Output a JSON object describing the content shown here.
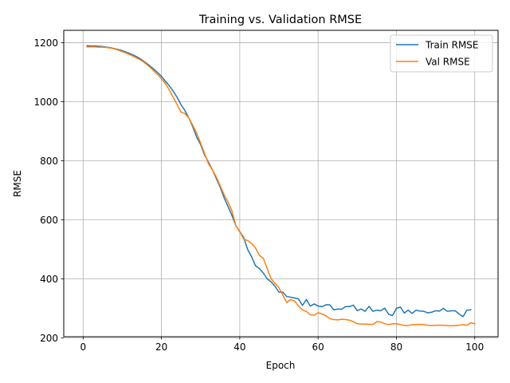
{
  "chart_data": {
    "type": "line",
    "title": "Training vs. Validation RMSE",
    "xlabel": "Epoch",
    "ylabel": "RMSE",
    "xlim": [
      -4.95,
      105.95
    ],
    "ylim": [
      204,
      1242
    ],
    "xticks": [
      0,
      20,
      40,
      60,
      80,
      100
    ],
    "yticks": [
      200,
      400,
      600,
      800,
      1000,
      1200
    ],
    "grid": true,
    "legend": "top-right",
    "series": [
      {
        "name": "Train RMSE",
        "color": "#1f77b4",
        "x": [
          1,
          2,
          3,
          4,
          5,
          6,
          7,
          8,
          9,
          10,
          11,
          12,
          13,
          14,
          15,
          16,
          17,
          18,
          19,
          20,
          21,
          22,
          23,
          24,
          25,
          26,
          27,
          28,
          29,
          30,
          31,
          32,
          33,
          34,
          35,
          36,
          37,
          38,
          39,
          40,
          41,
          42,
          43,
          44,
          45,
          46,
          47,
          48,
          49,
          50,
          51,
          52,
          53,
          54,
          55,
          56,
          57,
          58,
          59,
          60,
          61,
          62,
          63,
          64,
          65,
          66,
          67,
          68,
          69,
          70,
          71,
          72,
          73,
          74,
          75,
          76,
          77,
          78,
          79,
          80,
          81,
          82,
          83,
          84,
          85,
          86,
          87,
          88,
          89,
          90,
          91,
          92,
          93,
          94,
          95,
          96,
          97,
          98,
          99,
          100
        ],
        "values": [
          1190,
          1189,
          1189,
          1188,
          1187,
          1185,
          1183,
          1180,
          1177,
          1173,
          1168,
          1163,
          1157,
          1150,
          1142,
          1132,
          1122,
          1111,
          1099,
          1086,
          1070,
          1054,
          1036,
          1015,
          990,
          970,
          945,
          915,
          880,
          855,
          820,
          795,
          770,
          740,
          710,
          675,
          645,
          615,
          580,
          560,
          540,
          500,
          475,
          445,
          435,
          420,
          400,
          390,
          375,
          355,
          355,
          340,
          338,
          335,
          332,
          310,
          330,
          308,
          315,
          308,
          306,
          312,
          312,
          295,
          298,
          297,
          306,
          306,
          311,
          292,
          298,
          290,
          307,
          290,
          294,
          292,
          301,
          280,
          276,
          300,
          305,
          284,
          294,
          283,
          294,
          291,
          290,
          285,
          287,
          292,
          291,
          300,
          290,
          292,
          292,
          281,
          272,
          294,
          295,
          null
        ],
        "note": ""
      },
      {
        "name": "Val RMSE",
        "color": "#ff7f0e",
        "x": [
          1,
          2,
          3,
          4,
          5,
          6,
          7,
          8,
          9,
          10,
          11,
          12,
          13,
          14,
          15,
          16,
          17,
          18,
          19,
          20,
          21,
          22,
          23,
          24,
          25,
          26,
          27,
          28,
          29,
          30,
          31,
          32,
          33,
          34,
          35,
          36,
          37,
          38,
          39,
          40,
          41,
          42,
          43,
          44,
          45,
          46,
          47,
          48,
          49,
          50,
          51,
          52,
          53,
          54,
          55,
          56,
          57,
          58,
          59,
          60,
          61,
          62,
          63,
          64,
          65,
          66,
          67,
          68,
          69,
          70,
          71,
          72,
          73,
          74,
          75,
          76,
          77,
          78,
          79,
          80,
          81,
          82,
          83,
          84,
          85,
          86,
          87,
          88,
          89,
          90,
          91,
          92,
          93,
          94,
          95,
          96,
          97,
          98,
          99,
          100
        ],
        "values": [
          1186,
          1186,
          1186,
          1185,
          1185,
          1184,
          1182,
          1179,
          1175,
          1170,
          1165,
          1159,
          1153,
          1146,
          1139,
          1129,
          1118,
          1105,
          1092,
          1078,
          1062,
          1040,
          1015,
          990,
          965,
          960,
          945,
          920,
          893,
          860,
          825,
          790,
          770,
          745,
          715,
          685,
          660,
          630,
          580,
          560,
          535,
          530,
          520,
          505,
          480,
          470,
          435,
          400,
          385,
          370,
          345,
          320,
          330,
          325,
          308,
          295,
          290,
          278,
          277,
          285,
          281,
          275,
          265,
          262,
          261,
          263,
          262,
          260,
          255,
          248,
          247,
          247,
          246,
          246,
          255,
          254,
          248,
          245,
          248,
          248,
          245,
          242,
          242,
          245,
          245,
          246,
          245,
          243,
          242,
          243,
          243,
          243,
          242,
          241,
          242,
          243,
          245,
          243,
          251,
          248
        ]
      }
    ]
  }
}
